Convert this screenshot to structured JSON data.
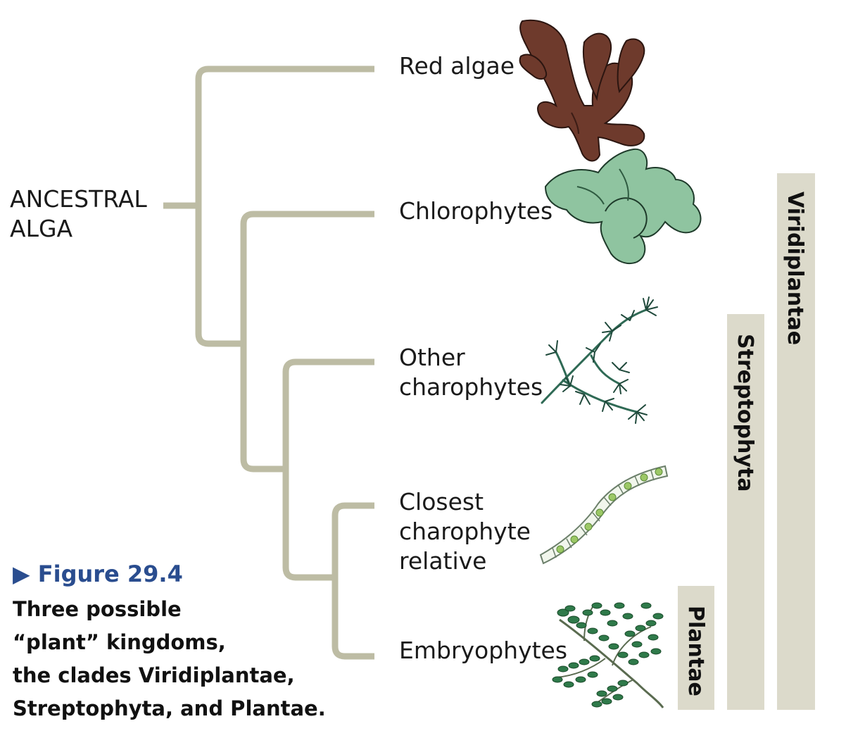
{
  "tree": {
    "root_label": "ANCESTRAL\nALGA",
    "taxa": [
      "Red algae",
      "Chlorophytes",
      "Other\ncharophytes",
      "Closest\ncharophyte\nrelative",
      "Embryophytes"
    ]
  },
  "clades": [
    {
      "name": "Viridiplantae"
    },
    {
      "name": "Streptophyta"
    },
    {
      "name": "Plantae"
    }
  ],
  "caption": {
    "figure_label": "Figure 29.4",
    "text": "Three possible\n“plant” kingdoms,\nthe clades Viridiplantae,\nStreptophyta, and Plantae."
  },
  "colors": {
    "branch": "#bdbca4",
    "clade_bar": "#dcdacb",
    "red_alga": "#6e3a2c",
    "chlorophyte": "#8fc4a0",
    "charophyte": "#2f6a55",
    "filament": "#9cc866",
    "fern": "#2f7a4a",
    "figure_label": "#2a4d8f"
  },
  "icons": [
    "red-alga-icon",
    "chlorophyte-icon",
    "charophyte-icon",
    "filament-icon",
    "fern-icon",
    "triangle-right-icon"
  ]
}
